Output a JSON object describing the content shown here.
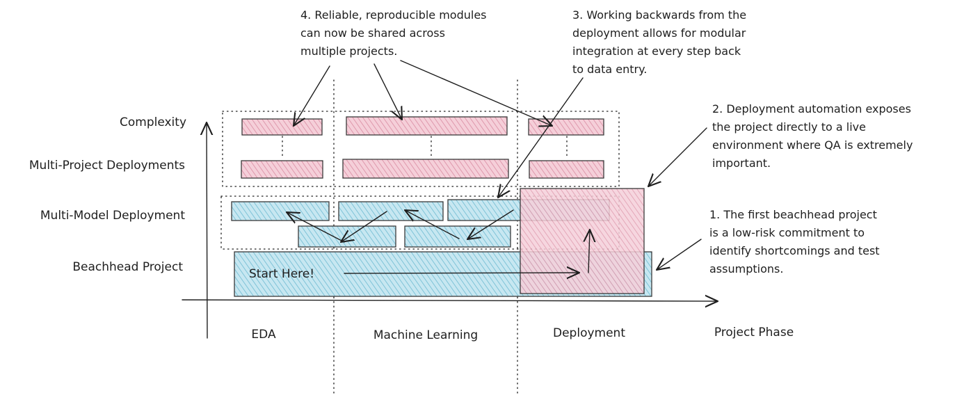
{
  "y_axis": {
    "labels": [
      "Complexity",
      "Multi-Project Deployments",
      "Multi-Model Deployment",
      "Beachhead Project"
    ]
  },
  "x_axis": {
    "phases": [
      "EDA",
      "Machine Learning",
      "Deployment"
    ],
    "axis_title": "Project Phase"
  },
  "start_label": "Start Here!",
  "notes": {
    "note1": [
      "1. The first beachhead project",
      "is a low-risk commitment to",
      "identify shortcomings and test",
      "assumptions."
    ],
    "note2": [
      "2. Deployment automation exposes",
      "the project directly to a live",
      "environment where QA is extremely",
      "important."
    ],
    "note3": [
      "3. Working backwards from the",
      "deployment allows for modular",
      "integration at every step back",
      "to data entry."
    ],
    "note4": [
      "4. Reliable, reproducible modules",
      "can now be shared across",
      "multiple projects."
    ]
  },
  "colors": {
    "pink_fill": "#f3c6d3",
    "pink_hatch": "#d77a96",
    "blue_fill": "#bfe3ee",
    "blue_hatch": "#5fb2cc",
    "ink": "#1e1e1e"
  }
}
